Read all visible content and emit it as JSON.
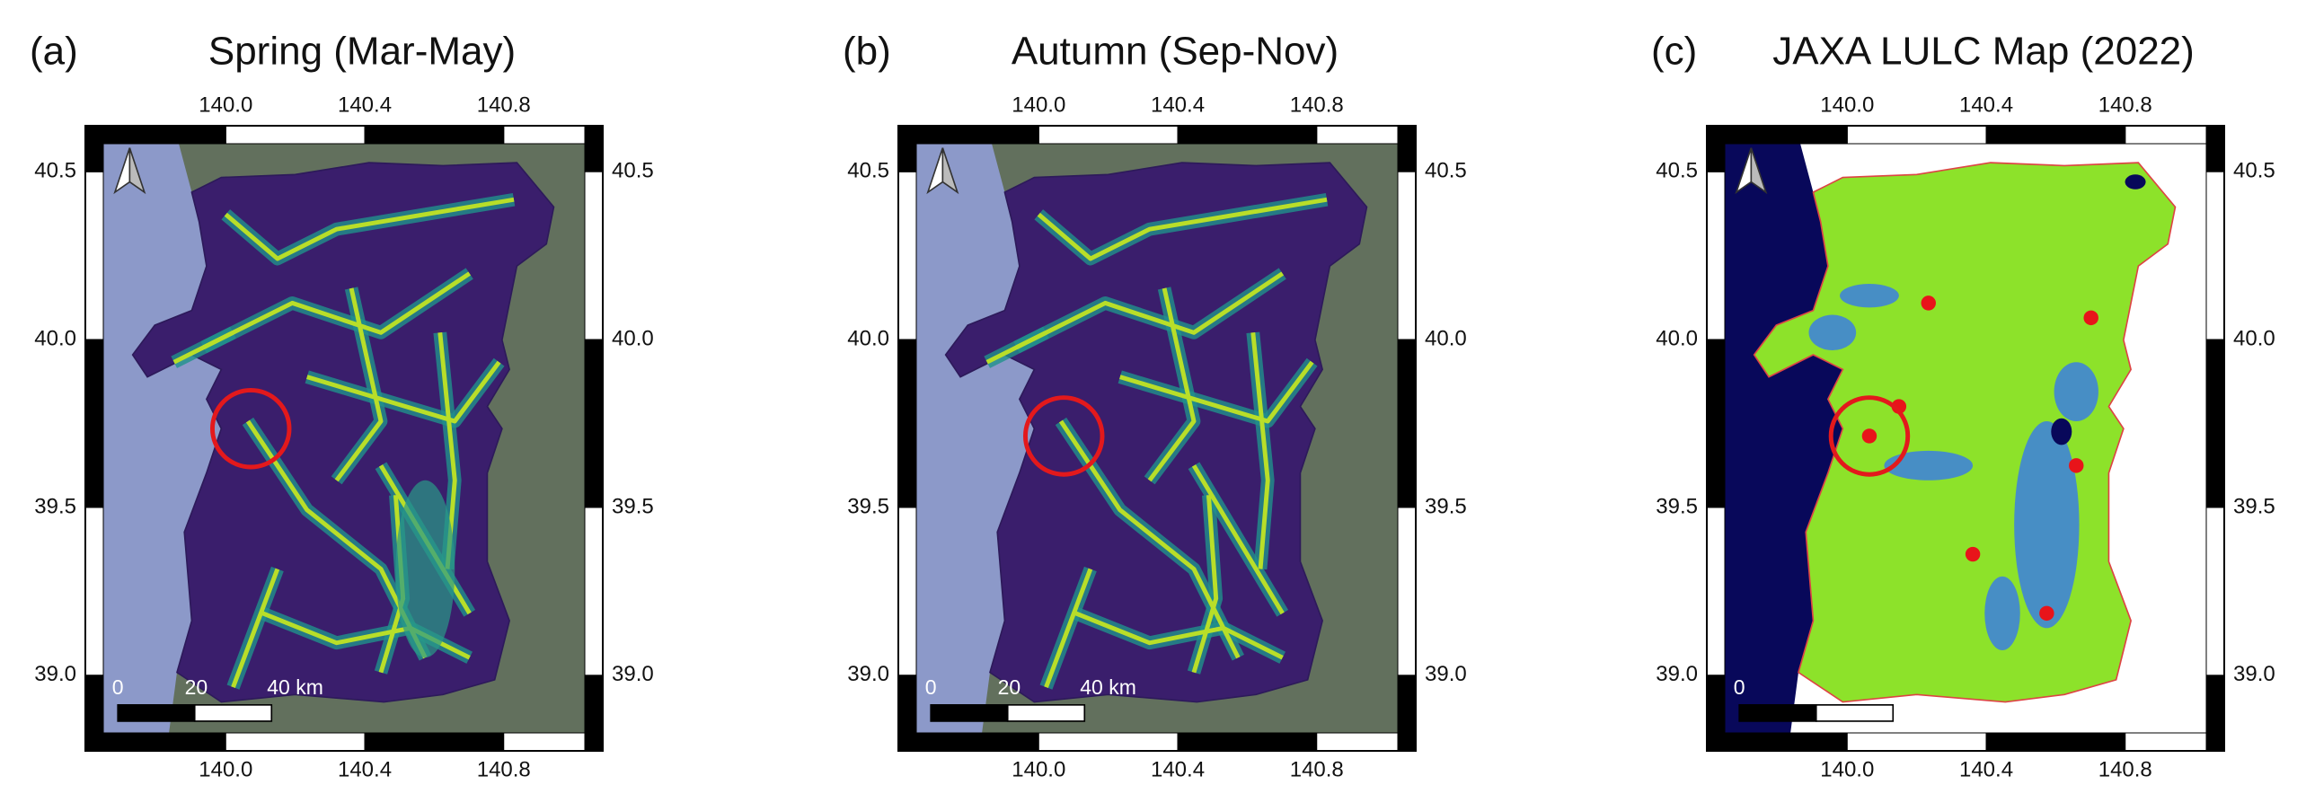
{
  "panels": [
    {
      "label": "(a)",
      "title": "Spring (Mar-May)",
      "scale_labels": [
        "0",
        "20",
        "40 km"
      ]
    },
    {
      "label": "(b)",
      "title": "Autumn (Sep-Nov)",
      "scale_labels": [
        "0",
        "20",
        "40 km"
      ]
    },
    {
      "label": "(c)",
      "title": "JAXA LULC Map (2022)",
      "scale_labels": [
        "0"
      ]
    }
  ],
  "axes": {
    "xlim": [
      139.596,
      141.085
    ],
    "ylim": [
      38.775,
      40.637
    ],
    "xticks": [
      {
        "value": 140,
        "label": "140.0"
      },
      {
        "value": 140.4,
        "label": "140.4"
      },
      {
        "value": 140.8,
        "label": "140.8"
      }
    ],
    "yticks": [
      {
        "value": 40.5,
        "label": "40.5"
      },
      {
        "value": 40,
        "label": "40.0"
      },
      {
        "value": 39.5,
        "label": "39.5"
      },
      {
        "value": 39,
        "label": "39.0"
      }
    ]
  }
}
